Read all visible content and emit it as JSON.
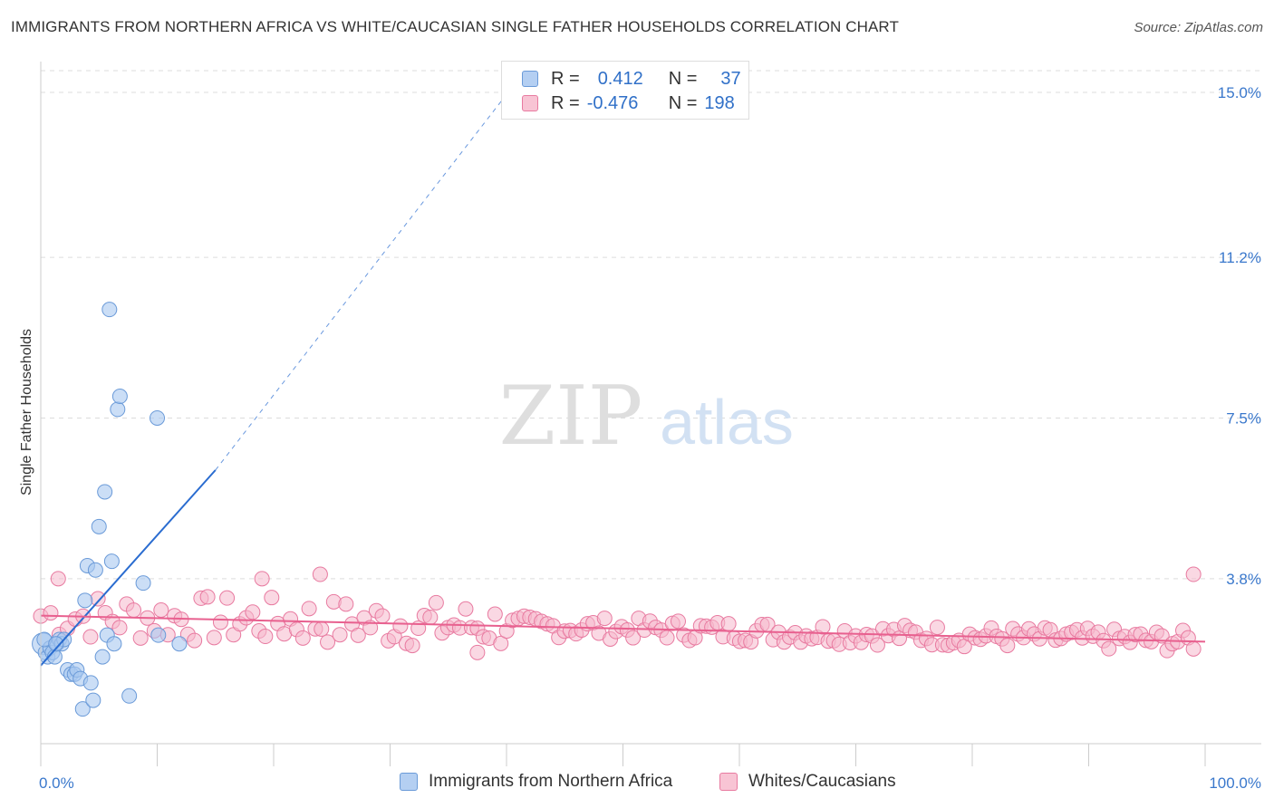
{
  "title": "IMMIGRANTS FROM NORTHERN AFRICA VS WHITE/CAUCASIAN SINGLE FATHER HOUSEHOLDS CORRELATION CHART",
  "source": "Source: ZipAtlas.com",
  "watermark": {
    "zip": "ZIP",
    "atlas": "atlas"
  },
  "legend_top": {
    "rows": [
      {
        "r_label": "R =",
        "r_value": "0.412",
        "n_label": "N =",
        "n_value": "37"
      },
      {
        "r_label": "R =",
        "r_value": "-0.476",
        "n_label": "N =",
        "n_value": "198"
      }
    ]
  },
  "legend_bottom": {
    "series1": "Immigrants from Northern Africa",
    "series2": "Whites/Caucasians"
  },
  "colors": {
    "blue_fill": "#a8c8f0",
    "blue_stroke": "#6a9ad8",
    "blue_line": "#2a6cd0",
    "pink_fill": "#f6b8cc",
    "pink_stroke": "#e87aa0",
    "pink_line": "#e8608f",
    "tick_text": "#3a78cc"
  },
  "chart_data": {
    "type": "scatter",
    "ylabel": "Single Father Households",
    "x_tick_labels": [
      "0.0%",
      "100.0%"
    ],
    "y_tick_labels": [
      "15.0%",
      "11.2%",
      "7.5%",
      "3.8%"
    ],
    "xlim": [
      0,
      100
    ],
    "ylim": [
      0,
      15.5
    ],
    "y_ticks": [
      15.0,
      11.2,
      7.5,
      3.8
    ],
    "series": [
      {
        "name": "Immigrants from Northern Africa",
        "r": 0.412,
        "n": 37,
        "points": [
          [
            0.2,
            2.3
          ],
          [
            0.4,
            2.1
          ],
          [
            0.6,
            2.0
          ],
          [
            0.8,
            2.2
          ],
          [
            1.0,
            2.1
          ],
          [
            1.2,
            2.0
          ],
          [
            1.4,
            2.3
          ],
          [
            1.6,
            2.4
          ],
          [
            1.8,
            2.3
          ],
          [
            2.0,
            2.4
          ],
          [
            2.3,
            1.7
          ],
          [
            2.6,
            1.6
          ],
          [
            2.9,
            1.6
          ],
          [
            3.1,
            1.7
          ],
          [
            3.4,
            1.5
          ],
          [
            3.6,
            0.8
          ],
          [
            3.8,
            3.3
          ],
          [
            4.0,
            4.1
          ],
          [
            4.3,
            1.4
          ],
          [
            4.5,
            1.0
          ],
          [
            4.7,
            4.0
          ],
          [
            5.0,
            5.0
          ],
          [
            5.3,
            2.0
          ],
          [
            5.5,
            5.8
          ],
          [
            5.7,
            2.5
          ],
          [
            5.9,
            10.0
          ],
          [
            6.1,
            4.2
          ],
          [
            6.3,
            2.3
          ],
          [
            6.6,
            7.7
          ],
          [
            6.8,
            8.0
          ],
          [
            7.6,
            1.1
          ],
          [
            8.8,
            3.7
          ],
          [
            10.0,
            7.5
          ],
          [
            10.1,
            2.5
          ],
          [
            11.9,
            2.3
          ],
          [
            0.3,
            2.4
          ],
          [
            1.3,
            2.3
          ]
        ],
        "trend": {
          "x": [
            0,
            15
          ],
          "y": [
            1.8,
            6.3
          ],
          "dashed_to": {
            "x": 41,
            "y": 15.3
          }
        }
      },
      {
        "name": "Whites/Caucasians",
        "r": -0.476,
        "n": 198,
        "trend": {
          "x": [
            0,
            100
          ],
          "y": [
            2.95,
            2.35
          ]
        }
      }
    ]
  }
}
